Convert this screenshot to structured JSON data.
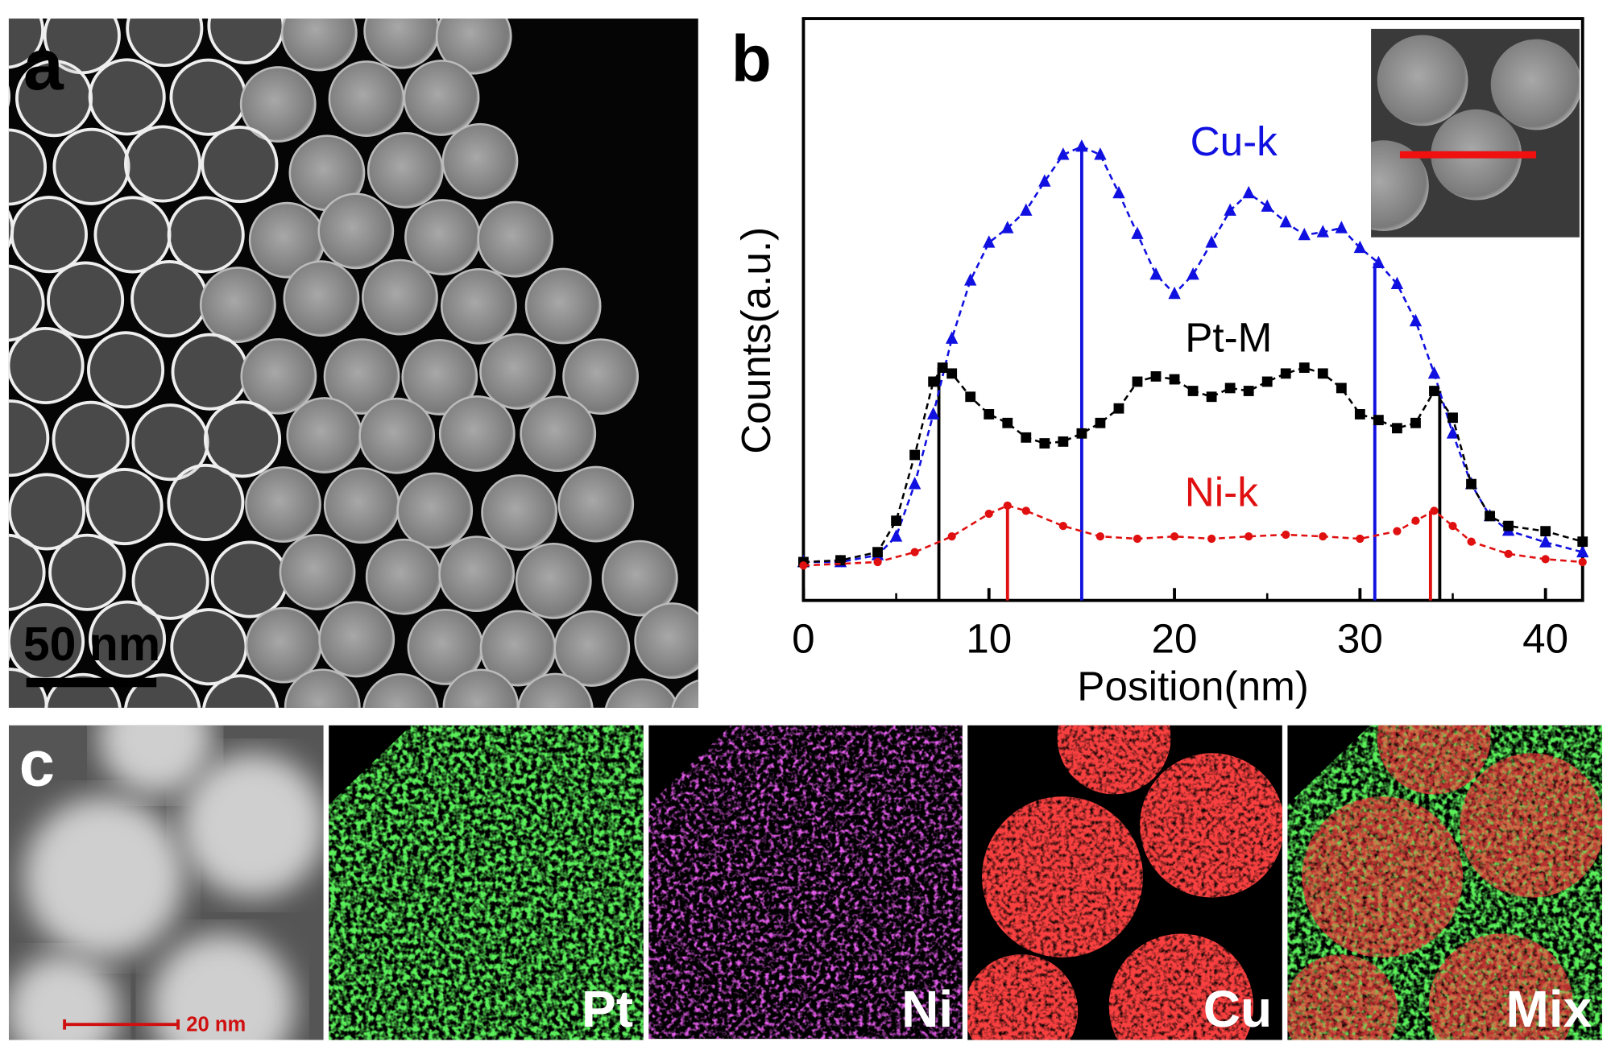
{
  "panels": {
    "a": {
      "label": "a",
      "scale_bar": "50 nm"
    },
    "b": {
      "label": "b"
    },
    "c": {
      "label": "c",
      "scale_bar": "20 nm",
      "maps": [
        "Pt",
        "Ni",
        "Cu",
        "Mix"
      ]
    }
  },
  "chart_data": {
    "type": "line",
    "x_label": "Position(nm)",
    "y_label": "Counts(a.u.)",
    "xlim": [
      0,
      42
    ],
    "xticks": [
      0,
      10,
      20,
      30,
      40
    ],
    "xminorticks": [
      5,
      15,
      25,
      35
    ],
    "ylim": [
      0,
      100
    ],
    "series": [
      {
        "name": "Cu-k",
        "color": "#1010e0",
        "marker": "triangle",
        "x": [
          0,
          2,
          4,
          5,
          6,
          7,
          8,
          9,
          10,
          11,
          12,
          13,
          14,
          15,
          16,
          17,
          18,
          19,
          20,
          21,
          22,
          23,
          24,
          25,
          26,
          27,
          28,
          29,
          30,
          31,
          32,
          33,
          34,
          35,
          36,
          37,
          38,
          40,
          42
        ],
        "values": [
          6.6,
          6.6,
          7.8,
          11,
          20,
          32,
          45,
          55,
          61.5,
          64,
          67,
          72,
          76.6,
          78,
          76.6,
          70,
          63,
          56,
          52.7,
          56,
          61.5,
          67,
          70,
          67.7,
          65,
          62.8,
          63.3,
          64,
          60.6,
          58,
          54.4,
          48,
          39,
          28.7,
          20,
          14.5,
          12,
          10,
          8.3
        ]
      },
      {
        "name": "Pt-M",
        "color": "#000000",
        "marker": "square",
        "x": [
          0,
          2,
          4,
          5,
          6,
          7,
          7.5,
          8,
          9,
          10,
          11,
          12,
          13,
          14,
          15,
          16,
          17,
          18,
          19,
          20,
          21,
          22,
          23,
          24,
          25,
          26,
          27,
          28,
          29,
          30,
          31,
          32,
          33,
          34,
          35,
          36,
          37,
          38,
          40,
          42
        ],
        "values": [
          6.6,
          6.9,
          8.3,
          13.7,
          25,
          37.6,
          40,
          39,
          35,
          32,
          30.5,
          28,
          27,
          27.3,
          28.7,
          30.5,
          33,
          37.6,
          38.5,
          38,
          36,
          35,
          36.5,
          36,
          37.6,
          39,
          40,
          39,
          36.5,
          32,
          31,
          29.6,
          30.5,
          36,
          31.4,
          20,
          14.5,
          12.8,
          11.9,
          10.1
        ]
      },
      {
        "name": "Ni-k",
        "color": "#e01010",
        "marker": "dot",
        "x": [
          0,
          4,
          6,
          8,
          10,
          11,
          12,
          14,
          16,
          18,
          20,
          22,
          24,
          26,
          28,
          30,
          32,
          33,
          34,
          35,
          36,
          38,
          40,
          42
        ],
        "values": [
          6,
          6.6,
          8.3,
          11,
          14.9,
          16.3,
          15.4,
          12.8,
          11,
          10.6,
          11,
          10.6,
          11,
          11.3,
          11,
          10.6,
          11.9,
          13.7,
          15.4,
          12.8,
          10.1,
          8,
          7.1,
          6.6
        ]
      }
    ],
    "vlines": [
      {
        "x": 7.3,
        "y": 40,
        "color": "#000000"
      },
      {
        "x": 34.3,
        "y": 36,
        "color": "#000000"
      },
      {
        "x": 15,
        "y": 78,
        "color": "#1010e0"
      },
      {
        "x": 30.8,
        "y": 58,
        "color": "#1010e0"
      },
      {
        "x": 11,
        "y": 16.3,
        "color": "#e01010"
      },
      {
        "x": 33.8,
        "y": 15.4,
        "color": "#e01010"
      }
    ]
  }
}
